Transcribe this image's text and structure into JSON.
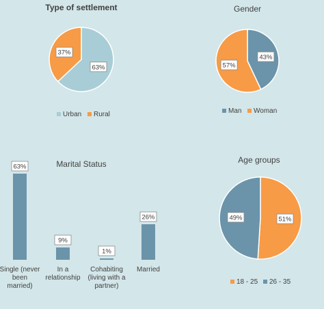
{
  "chart_data": [
    {
      "type": "pie",
      "title": "Type of settlement",
      "categories": [
        "Urban",
        "Rural"
      ],
      "values": [
        63,
        37
      ],
      "labels": [
        "63%",
        "37%"
      ],
      "colors": [
        "#a8cdd6",
        "#f79b46"
      ],
      "legend": "bottom"
    },
    {
      "type": "pie",
      "title": "Gender",
      "categories": [
        "Man",
        "Woman"
      ],
      "values": [
        43,
        57
      ],
      "labels": [
        "43%",
        "57%"
      ],
      "colors": [
        "#6b94aa",
        "#f79b46"
      ],
      "legend": "bottom"
    },
    {
      "type": "bar",
      "title": "Marital Status",
      "categories": [
        "Single (never been married)",
        "In a relationship",
        "Cohabiting (living with a partner)",
        "Married"
      ],
      "category_lines": [
        [
          "Single (never",
          "been",
          "married)"
        ],
        [
          "In a",
          "relationship"
        ],
        [
          "Cohabiting",
          "(living with a",
          "partner)"
        ],
        [
          "Married"
        ]
      ],
      "values": [
        63,
        9,
        1,
        26
      ],
      "labels": [
        "63%",
        "9%",
        "1%",
        "26%"
      ],
      "ylim": [
        0,
        70
      ],
      "color": "#6b94aa",
      "grid": false
    },
    {
      "type": "pie",
      "title": "Age groups",
      "categories": [
        "18 - 25",
        "26 - 35"
      ],
      "values": [
        51,
        49
      ],
      "labels": [
        "51%",
        "49%"
      ],
      "colors": [
        "#f79b46",
        "#6b94aa"
      ],
      "legend": "bottom"
    }
  ]
}
